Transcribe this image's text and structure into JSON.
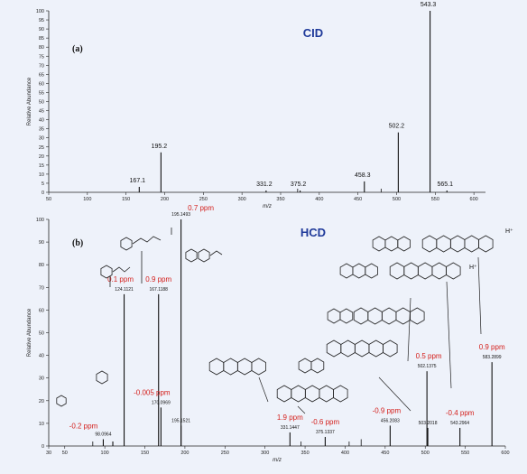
{
  "chart_data": [
    {
      "type": "bar",
      "panel": "(a)",
      "title": "CID",
      "xlabel": "m/z",
      "ylabel": "Relative Abundance",
      "xlim": [
        50,
        615
      ],
      "ylim": [
        0,
        100
      ],
      "xticks": [
        50,
        100,
        150,
        200,
        250,
        300,
        350,
        400,
        450,
        500,
        550,
        600
      ],
      "yticks": [
        0,
        5,
        10,
        15,
        20,
        25,
        30,
        35,
        40,
        45,
        50,
        55,
        60,
        65,
        70,
        75,
        80,
        85,
        90,
        95,
        100
      ],
      "peaks": [
        {
          "mz": 167.1,
          "intensity": 3,
          "label": "167.1"
        },
        {
          "mz": 195.2,
          "intensity": 22,
          "label": "195.2"
        },
        {
          "mz": 331.2,
          "intensity": 1,
          "label": "331.2"
        },
        {
          "mz": 375.2,
          "intensity": 1,
          "label": "375.2"
        },
        {
          "mz": 458.3,
          "intensity": 6,
          "label": "458.3"
        },
        {
          "mz": 502.2,
          "intensity": 33,
          "label": "502.2"
        },
        {
          "mz": 543.3,
          "intensity": 100,
          "label": "543.3"
        },
        {
          "mz": 565.1,
          "intensity": 1,
          "label": "565.1"
        }
      ]
    },
    {
      "type": "bar",
      "panel": "(b)",
      "title": "HCD",
      "xlabel": "m/z",
      "ylabel": "Relative Abundance",
      "xlim": [
        30,
        600
      ],
      "ylim": [
        0,
        100
      ],
      "xticks": [
        30,
        50,
        100,
        150,
        200,
        250,
        300,
        350,
        400,
        450,
        500,
        550,
        600
      ],
      "yticks": [
        0,
        10,
        20,
        30,
        40,
        50,
        60,
        70,
        80,
        90,
        100
      ],
      "peaks": [
        {
          "mz": 98.0964,
          "intensity": 3,
          "label": "98.0964",
          "ppm": "-0.2 ppm"
        },
        {
          "mz": 110.0,
          "intensity": 2,
          "label": ""
        },
        {
          "mz": 124.1121,
          "intensity": 67,
          "label": "124.1121",
          "ppm": "0.1 ppm"
        },
        {
          "mz": 167.1188,
          "intensity": 67,
          "label": "167.1188",
          "ppm": "0.9 ppm"
        },
        {
          "mz": 170.0969,
          "intensity": 17,
          "label": "170.0969",
          "ppm": "-0.005 ppm"
        },
        {
          "mz": 195.1521,
          "intensity": 9,
          "label": "195.1521"
        },
        {
          "mz": 195.1493,
          "intensity": 100,
          "label": "195.1493",
          "ppm": "0.7 ppm"
        },
        {
          "mz": 331.1447,
          "intensity": 6,
          "label": "331.1447",
          "ppm": "1.9 ppm"
        },
        {
          "mz": 375.1337,
          "intensity": 4,
          "label": "375.1337",
          "ppm": "-0.6 ppm"
        },
        {
          "mz": 456.2083,
          "intensity": 9,
          "label": "456.2083",
          "ppm": "-0.9 ppm"
        },
        {
          "mz": 502.1375,
          "intensity": 33,
          "label": "502.1375",
          "ppm": "0.5 ppm"
        },
        {
          "mz": 503.2018,
          "intensity": 8,
          "label": "503.2018"
        },
        {
          "mz": 543.2964,
          "intensity": 8,
          "label": "543.2964",
          "ppm": "-0.4 ppm"
        },
        {
          "mz": 583.2899,
          "intensity": 37,
          "label": "583.2899",
          "ppm": "0.9 ppm"
        }
      ],
      "annotations": [
        "H⁺",
        "H⁺"
      ]
    }
  ]
}
